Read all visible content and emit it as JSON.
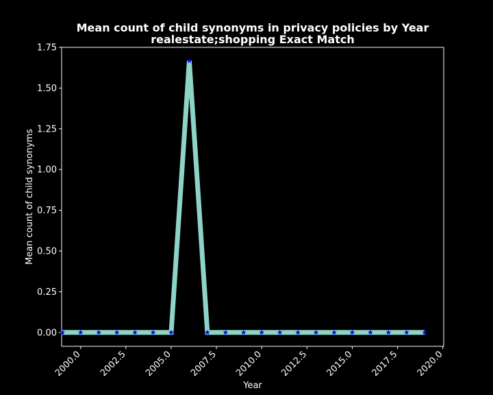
{
  "chart_data": {
    "type": "line",
    "title": "Mean count of child synonyms in privacy policies by Year",
    "subtitle": "realestate;shopping Exact Match",
    "xlabel": "Year",
    "ylabel": "Mean count of child synonyms",
    "xlim": [
      1998.95,
      2020.05
    ],
    "ylim": [
      -0.085,
      1.75
    ],
    "xticks": [
      2000.0,
      2002.5,
      2005.0,
      2007.5,
      2010.0,
      2012.5,
      2015.0,
      2017.5,
      2020.0
    ],
    "xtick_labels": [
      "2000.0",
      "2002.5",
      "2005.0",
      "2007.5",
      "2010.0",
      "2012.5",
      "2015.0",
      "2017.5",
      "2020.0"
    ],
    "yticks": [
      0.0,
      0.25,
      0.5,
      0.75,
      1.0,
      1.25,
      1.5,
      1.75
    ],
    "ytick_labels": [
      "0.00",
      "0.25",
      "0.50",
      "0.75",
      "1.00",
      "1.25",
      "1.50",
      "1.75"
    ],
    "grid": false,
    "line_color": "#8dd3c7",
    "marker_color": "#0000ff",
    "marker": "star",
    "background": "#000000",
    "x": [
      1999,
      2000,
      2001,
      2002,
      2003,
      2004,
      2005,
      2006,
      2007,
      2008,
      2009,
      2010,
      2011,
      2012,
      2013,
      2014,
      2015,
      2016,
      2017,
      2018,
      2019
    ],
    "y": [
      0,
      0,
      0,
      0,
      0,
      0,
      0,
      1.667,
      0,
      0,
      0,
      0,
      0,
      0,
      0,
      0,
      0,
      0,
      0,
      0,
      0
    ]
  }
}
